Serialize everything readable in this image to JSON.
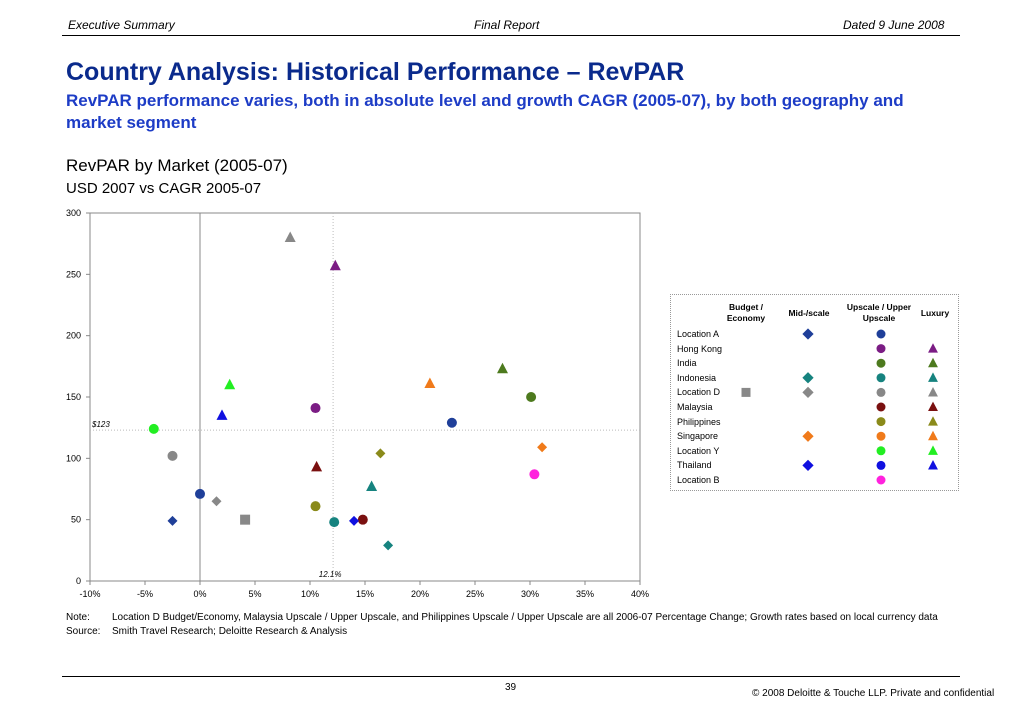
{
  "header": {
    "left": "Executive Summary",
    "center": "Final Report",
    "right": "Dated 9 June 2008"
  },
  "title": "Country Analysis: Historical Performance – RevPAR",
  "subtitle": "RevPAR performance varies, both in absolute level and growth CAGR (2005-07), by both geography and market segment",
  "chart_title": "RevPAR by Market (2005-07)",
  "chart_subtitle": "USD 2007 vs CAGR 2005-07",
  "chart_data": {
    "type": "scatter",
    "xlim": [
      -10,
      40
    ],
    "ylim": [
      0,
      300
    ],
    "x_ticks": [
      -10,
      -5,
      0,
      5,
      10,
      15,
      20,
      25,
      30,
      35,
      40
    ],
    "x_tick_labels": [
      "-10%",
      "-5%",
      "0%",
      "5%",
      "10%",
      "15%",
      "20%",
      "25%",
      "30%",
      "35%",
      "40%"
    ],
    "y_ticks": [
      0,
      50,
      100,
      150,
      200,
      250,
      300
    ],
    "y_tick_labels": [
      "0",
      "50",
      "100",
      "150",
      "200",
      "250",
      "300"
    ],
    "grid": false,
    "legend_position": "right",
    "reference_lines": {
      "x": 12.1,
      "x_label": "12.1%",
      "y": 123,
      "y_label": "$123"
    },
    "segments": [
      {
        "name": "Budget / Economy",
        "shape": "square"
      },
      {
        "name": "Mid-/scale",
        "shape": "diamond"
      },
      {
        "name": "Upscale / Upper Upscale",
        "shape": "circle"
      },
      {
        "name": "Luxury",
        "shape": "triangle"
      }
    ],
    "markets": [
      {
        "name": "Location A",
        "color": "#1f3f99"
      },
      {
        "name": "Hong Kong",
        "color": "#7b1c84"
      },
      {
        "name": "India",
        "color": "#4d7a1e"
      },
      {
        "name": "Indonesia",
        "color": "#16837f"
      },
      {
        "name": "Location D",
        "color": "#888888"
      },
      {
        "name": "Malaysia",
        "color": "#7a1010"
      },
      {
        "name": "Philippines",
        "color": "#8a8a1a"
      },
      {
        "name": "Singapore",
        "color": "#f07a1a"
      },
      {
        "name": "Location Y",
        "color": "#22ee22"
      },
      {
        "name": "Thailand",
        "color": "#1010e0"
      },
      {
        "name": "Location B",
        "color": "#ff22dd"
      }
    ],
    "legend_marks": [
      {
        "market": 0,
        "segments": [
          1,
          2
        ]
      },
      {
        "market": 1,
        "segments": [
          2,
          3
        ]
      },
      {
        "market": 2,
        "segments": [
          2,
          3
        ]
      },
      {
        "market": 3,
        "segments": [
          1,
          2,
          3
        ]
      },
      {
        "market": 4,
        "segments": [
          0,
          1,
          2,
          3
        ]
      },
      {
        "market": 5,
        "segments": [
          2,
          3
        ]
      },
      {
        "market": 6,
        "segments": [
          2,
          3
        ]
      },
      {
        "market": 7,
        "segments": [
          1,
          2,
          3
        ]
      },
      {
        "market": 8,
        "segments": [
          2,
          3
        ]
      },
      {
        "market": 9,
        "segments": [
          1,
          2,
          3
        ]
      },
      {
        "market": 10,
        "segments": [
          2
        ]
      }
    ],
    "points": [
      {
        "market": 0,
        "segment": 1,
        "x": -2.5,
        "y": 49
      },
      {
        "market": 0,
        "segment": 2,
        "x": 0.0,
        "y": 71
      },
      {
        "market": 0,
        "segment": 2,
        "x": 22.9,
        "y": 129
      },
      {
        "market": 1,
        "segment": 2,
        "x": 10.5,
        "y": 141
      },
      {
        "market": 1,
        "segment": 3,
        "x": 12.3,
        "y": 257
      },
      {
        "market": 2,
        "segment": 2,
        "x": 30.1,
        "y": 150
      },
      {
        "market": 2,
        "segment": 3,
        "x": 27.5,
        "y": 173
      },
      {
        "market": 3,
        "segment": 1,
        "x": 17.1,
        "y": 29
      },
      {
        "market": 3,
        "segment": 2,
        "x": 12.2,
        "y": 48
      },
      {
        "market": 3,
        "segment": 3,
        "x": 15.6,
        "y": 77
      },
      {
        "market": 4,
        "segment": 0,
        "x": 4.1,
        "y": 50
      },
      {
        "market": 4,
        "segment": 1,
        "x": 1.5,
        "y": 65
      },
      {
        "market": 4,
        "segment": 2,
        "x": -2.5,
        "y": 102
      },
      {
        "market": 4,
        "segment": 3,
        "x": 8.2,
        "y": 280
      },
      {
        "market": 5,
        "segment": 2,
        "x": 14.8,
        "y": 50
      },
      {
        "market": 5,
        "segment": 3,
        "x": 10.6,
        "y": 93
      },
      {
        "market": 6,
        "segment": 1,
        "x": 16.4,
        "y": 104
      },
      {
        "market": 6,
        "segment": 2,
        "x": 10.5,
        "y": 61
      },
      {
        "market": 7,
        "segment": 1,
        "x": 31.1,
        "y": 109
      },
      {
        "market": 7,
        "segment": 3,
        "x": 20.9,
        "y": 161
      },
      {
        "market": 8,
        "segment": 2,
        "x": -4.2,
        "y": 124
      },
      {
        "market": 8,
        "segment": 3,
        "x": 2.7,
        "y": 160
      },
      {
        "market": 9,
        "segment": 1,
        "x": 14.0,
        "y": 49
      },
      {
        "market": 9,
        "segment": 3,
        "x": 2.0,
        "y": 135
      },
      {
        "market": 10,
        "segment": 2,
        "x": 30.4,
        "y": 87
      }
    ]
  },
  "notes": {
    "note_label": "Note:",
    "note_text": "Location D Budget/Economy, Malaysia Upscale / Upper Upscale, and Philippines Upscale / Upper Upscale are all 2006-07 Percentage Change; Growth rates based on local currency data",
    "source_label": "Source:",
    "source_text": "Smith Travel Research; Deloitte Research & Analysis"
  },
  "footer": {
    "page_number": "39",
    "copyright": "© 2008 Deloitte & Touche LLP. Private and confidential"
  }
}
